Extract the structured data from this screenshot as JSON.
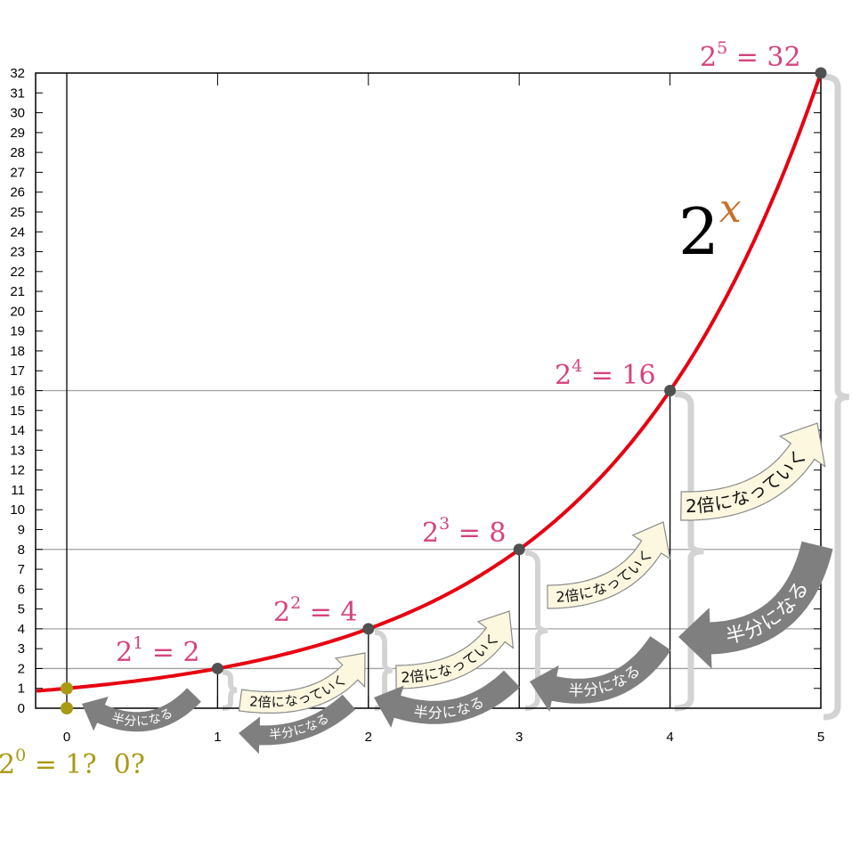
{
  "chart_data": {
    "type": "line",
    "title": "2^x",
    "function": "2^x",
    "xlim": [
      -0.2,
      5
    ],
    "ylim": [
      0,
      32
    ],
    "x_ticks": [
      0,
      1,
      2,
      3,
      4,
      5
    ],
    "y_ticks": [
      0,
      1,
      2,
      3,
      4,
      5,
      6,
      7,
      8,
      9,
      10,
      11,
      12,
      13,
      14,
      15,
      16,
      17,
      18,
      19,
      20,
      21,
      22,
      23,
      24,
      25,
      26,
      27,
      28,
      29,
      30,
      31,
      32
    ],
    "points": [
      {
        "x": 1,
        "y": 2,
        "label_base": "2",
        "label_exp": "1",
        "label_rest": " = 2"
      },
      {
        "x": 2,
        "y": 4,
        "label_base": "2",
        "label_exp": "2",
        "label_rest": " = 4"
      },
      {
        "x": 3,
        "y": 8,
        "label_base": "2",
        "label_exp": "3",
        "label_rest": " = 8"
      },
      {
        "x": 4,
        "y": 16,
        "label_base": "2",
        "label_exp": "4",
        "label_rest": " = 16"
      },
      {
        "x": 5,
        "y": 32,
        "label_base": "2",
        "label_exp": "5",
        "label_rest": " = 32"
      }
    ],
    "zero_points": [
      {
        "x": 0,
        "y": 1
      },
      {
        "x": 0,
        "y": 0
      }
    ],
    "zero_label": {
      "base": "2",
      "exp": "0",
      "rest": " = 1?  0?"
    },
    "guide_lines_y": [
      2,
      4,
      8,
      16
    ],
    "curve_label": {
      "base": "2",
      "exp": "x"
    },
    "double_label": "2倍になっていく",
    "half_label": "半分になる",
    "grid": false,
    "legend": "none"
  },
  "colors": {
    "curve": "#e60012",
    "point": "#505050",
    "label": "#d6437e",
    "zero": "#a89a14",
    "exp_x": "#c8702a",
    "brace": "#d3d3d3",
    "double_fill": "#fcf7df",
    "half_fill": "#7f7f7f"
  }
}
